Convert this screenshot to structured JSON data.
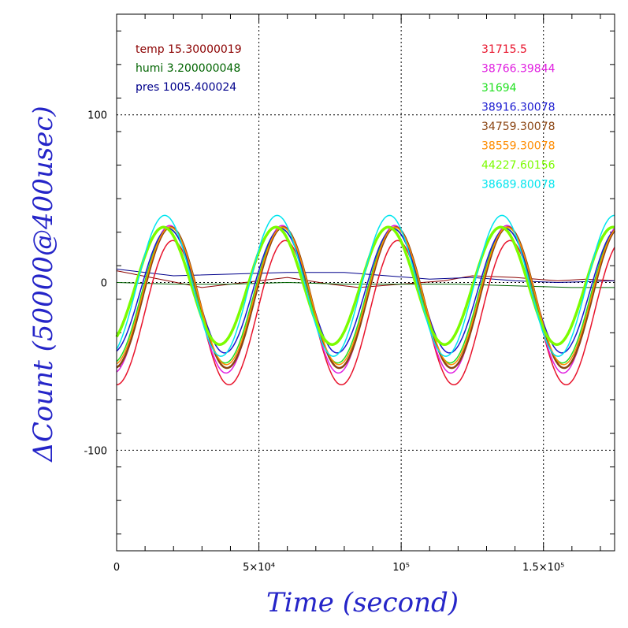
{
  "chart_data": {
    "type": "line",
    "xlabel": "Time (second)",
    "ylabel": "ΔCount (50000@400usec)",
    "xlim": [
      0,
      175000
    ],
    "ylim": [
      -160,
      160
    ],
    "grid": true,
    "x_ticks": [
      {
        "value": 0,
        "label": "0"
      },
      {
        "value": 50000,
        "label": "5×10⁴"
      },
      {
        "value": 100000,
        "label": "10⁵"
      },
      {
        "value": 150000,
        "label": "1.5×10⁵"
      }
    ],
    "y_ticks": [
      {
        "value": 100,
        "label": "100"
      },
      {
        "value": 0,
        "label": "0"
      },
      {
        "value": -100,
        "label": "-100"
      }
    ],
    "env_legend": [
      {
        "text": "temp 15.30000019",
        "color": "#8b0000"
      },
      {
        "text": "humi 3.200000048",
        "color": "#006400"
      },
      {
        "text": "pres 1005.400024",
        "color": "#00008b"
      }
    ],
    "series": [
      {
        "name": "31715.5",
        "color": "#e8142c",
        "amplitude": 43,
        "offset": -18,
        "phase": 1.57,
        "width": 1.5
      },
      {
        "name": "38766.39844",
        "color": "#e020e0",
        "amplitude": 44,
        "offset": -10,
        "phase": 1.4,
        "width": 1.5
      },
      {
        "name": "31694",
        "color": "#20e020",
        "amplitude": 40,
        "offset": -8,
        "phase": 1.36,
        "width": 1.5
      },
      {
        "name": "38916.30078",
        "color": "#1818d0",
        "amplitude": 37,
        "offset": -5,
        "phase": 1.33,
        "width": 1.5
      },
      {
        "name": "34759.30078",
        "color": "#8b4513",
        "amplitude": 42,
        "offset": -9,
        "phase": 1.45,
        "width": 2.5
      },
      {
        "name": "38559.30078",
        "color": "#ff8c00",
        "amplitude": 41,
        "offset": -8,
        "phase": 1.42,
        "width": 1.5
      },
      {
        "name": "44227.60156",
        "color": "#7cfc00",
        "amplitude": 35,
        "offset": -2,
        "phase": 1.05,
        "width": 3.5
      },
      {
        "name": "38689.80078",
        "color": "#00e5ee",
        "amplitude": 42,
        "offset": -2,
        "phase": 1.12,
        "width": 1.5
      }
    ],
    "env_series": [
      {
        "name": "temp",
        "color": "#8b0000",
        "points": [
          [
            0,
            7
          ],
          [
            15000,
            2
          ],
          [
            30000,
            -3
          ],
          [
            45000,
            0
          ],
          [
            60000,
            3
          ],
          [
            75000,
            -1
          ],
          [
            85000,
            -3
          ],
          [
            100000,
            -1
          ],
          [
            115000,
            1
          ],
          [
            125000,
            4
          ],
          [
            140000,
            3
          ],
          [
            155000,
            1
          ],
          [
            165000,
            2
          ],
          [
            175000,
            1
          ]
        ]
      },
      {
        "name": "humi",
        "color": "#006400",
        "points": [
          [
            0,
            0
          ],
          [
            20000,
            -1
          ],
          [
            40000,
            -1
          ],
          [
            60000,
            0
          ],
          [
            80000,
            -1
          ],
          [
            100000,
            -1
          ],
          [
            120000,
            -1
          ],
          [
            140000,
            -2
          ],
          [
            160000,
            -3
          ],
          [
            175000,
            -3
          ]
        ]
      },
      {
        "name": "pres",
        "color": "#00008b",
        "points": [
          [
            0,
            8
          ],
          [
            20000,
            4
          ],
          [
            40000,
            5
          ],
          [
            60000,
            6
          ],
          [
            80000,
            6
          ],
          [
            95000,
            4
          ],
          [
            110000,
            2
          ],
          [
            125000,
            3
          ],
          [
            140000,
            1
          ],
          [
            155000,
            0
          ],
          [
            175000,
            1
          ]
        ]
      }
    ],
    "period_seconds": 39500
  }
}
